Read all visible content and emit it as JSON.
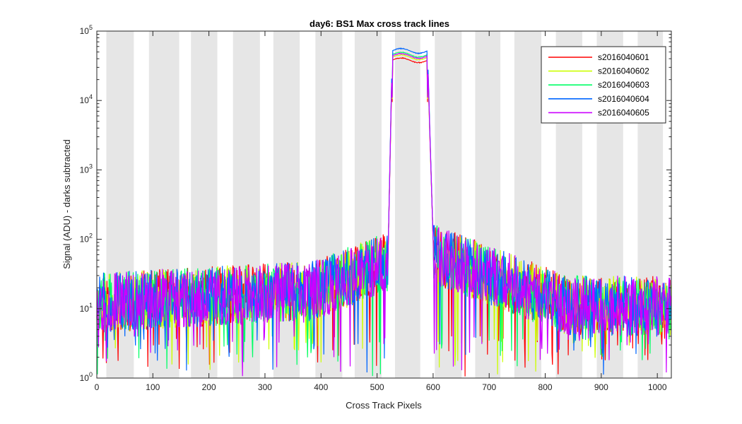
{
  "chart_data": {
    "type": "line",
    "title": "day6: BS1  Max cross track lines",
    "xlabel": "Cross Track Pixels",
    "ylabel": "Signal (ADU) - darks subtracted",
    "yscale": "log",
    "xlim": [
      0,
      1025
    ],
    "ylim": [
      1,
      100000
    ],
    "xticks": [
      0,
      100,
      200,
      300,
      400,
      500,
      600,
      700,
      800,
      900,
      1000
    ],
    "yticks": [
      {
        "base": "10",
        "exp": "0",
        "value": 1
      },
      {
        "base": "10",
        "exp": "1",
        "value": 10
      },
      {
        "base": "10",
        "exp": "2",
        "value": 100
      },
      {
        "base": "10",
        "exp": "3",
        "value": 1000
      },
      {
        "base": "10",
        "exp": "4",
        "value": 10000
      },
      {
        "base": "10",
        "exp": "5",
        "value": 100000
      }
    ],
    "legend_position": "top-right",
    "shaded_bands": [
      [
        17,
        66
      ],
      [
        93,
        147
      ],
      [
        168,
        215
      ],
      [
        243,
        291
      ],
      [
        315,
        362
      ],
      [
        390,
        438
      ],
      [
        460,
        508
      ],
      [
        532,
        577
      ],
      [
        603,
        651
      ],
      [
        675,
        720
      ],
      [
        745,
        793
      ],
      [
        819,
        866
      ],
      [
        892,
        939
      ],
      [
        965,
        1010
      ]
    ],
    "series": [
      {
        "name": "s2016040601",
        "color": "#ff0000",
        "plateau": 38000,
        "seed": 11
      },
      {
        "name": "s2016040602",
        "color": "#ccff00",
        "plateau": 42000,
        "seed": 23
      },
      {
        "name": "s2016040603",
        "color": "#00ff66",
        "plateau": 46000,
        "seed": 37
      },
      {
        "name": "s2016040604",
        "color": "#0066ff",
        "plateau": 52000,
        "seed": 51
      },
      {
        "name": "s2016040605",
        "color": "#cc00ff",
        "plateau": 44000,
        "seed": 67
      }
    ]
  }
}
